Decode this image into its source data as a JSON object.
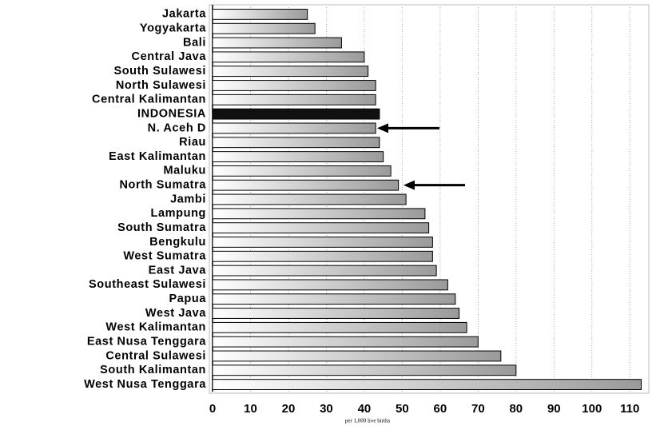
{
  "chart_data": {
    "type": "barh",
    "categories": [
      "Jakarta",
      "Yogyakarta",
      "Bali",
      "Central Java",
      "South Sulawesi",
      "North Sulawesi",
      "Central Kalimantan",
      "INDONESIA",
      "N. Aceh D",
      "Riau",
      "East Kalimantan",
      "Maluku",
      "North Sumatra",
      "Jambi",
      "Lampung",
      "South Sumatra",
      "Bengkulu",
      "West Sumatra",
      "East Java",
      "Southeast Sulawesi",
      "Papua",
      "West Java",
      "West Kalimantan",
      "East Nusa Tenggara",
      "Central Sulawesi",
      "South Kalimantan",
      "West Nusa Tenggara"
    ],
    "values": [
      25,
      27,
      34,
      40,
      41,
      43,
      43,
      44,
      43,
      44,
      45,
      47,
      49,
      51,
      56,
      57,
      58,
      58,
      59,
      62,
      64,
      65,
      67,
      70,
      76,
      80,
      113
    ],
    "colors": [
      "#9a9a9a",
      "#9a9a9a",
      "#9a9a9a",
      "#9a9a9a",
      "#9a9a9a",
      "#9a9a9a",
      "#9a9a9a",
      "#111111",
      "#9a9a9a",
      "#9a9a9a",
      "#9a9a9a",
      "#9a9a9a",
      "#9a9a9a",
      "#9a9a9a",
      "#9a9a9a",
      "#9a9a9a",
      "#9a9a9a",
      "#9a9a9a",
      "#9a9a9a",
      "#9a9a9a",
      "#9a9a9a",
      "#9a9a9a",
      "#9a9a9a",
      "#9a9a9a",
      "#9a9a9a",
      "#9a9a9a",
      "#9a9a9a"
    ],
    "x_label": "per 1,000 live births",
    "xlim": [
      0,
      115
    ],
    "xticks": [
      0,
      10,
      20,
      30,
      40,
      50,
      60,
      70,
      80,
      90,
      100,
      110
    ],
    "grid": true
  }
}
